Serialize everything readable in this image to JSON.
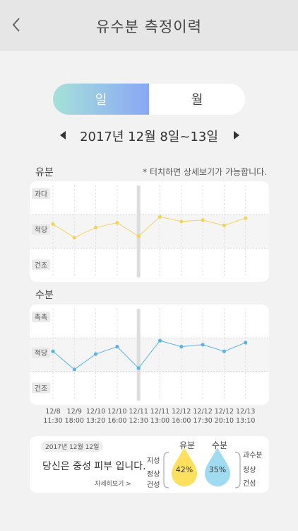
{
  "header": {
    "title": "유수분 측정이력",
    "back_icon": "chevron-left-icon"
  },
  "toggle": {
    "day": "일",
    "month": "월"
  },
  "date_nav": {
    "range": "2017년 12월 8일~13일"
  },
  "oil_section": {
    "label": "유분",
    "hint": "* 터치하면 상세보기가 가능합니다.",
    "levels": [
      "과다",
      "적당",
      "건조"
    ]
  },
  "moisture_section": {
    "label": "수분",
    "levels": [
      "촉촉",
      "적당",
      "건조"
    ]
  },
  "times": [
    {
      "date": "12/8",
      "time": "11:30"
    },
    {
      "date": "12/9",
      "time": "18:00"
    },
    {
      "date": "12/10",
      "time": "13:20"
    },
    {
      "date": "12/10",
      "time": "16:00"
    },
    {
      "date": "12/11",
      "time": "12:30"
    },
    {
      "date": "12/11",
      "time": "13:00"
    },
    {
      "date": "12/12",
      "time": "16:00"
    },
    {
      "date": "12/12",
      "time": "17:30"
    },
    {
      "date": "12/12",
      "time": "20:10"
    },
    {
      "date": "12/13",
      "time": "13:10"
    }
  ],
  "chart_data": [
    {
      "type": "line",
      "title": "유분",
      "categories": [
        "12/8 11:30",
        "12/9 18:00",
        "12/10 13:20",
        "12/10 16:00",
        "12/11 12:30",
        "12/11 13:00",
        "12/12 16:00",
        "12/12 17:30",
        "12/12 20:10",
        "12/13 13:10"
      ],
      "series": [
        {
          "values": [
            1.72,
            1.32,
            1.62,
            1.76,
            1.36,
            1.94,
            1.8,
            1.84,
            1.68,
            1.9
          ]
        }
      ],
      "ylim": [
        0,
        3
      ],
      "y_bands": [
        "건조",
        "적당",
        "과다"
      ],
      "color": "#f3d35a",
      "highlight_index": 4
    },
    {
      "type": "line",
      "title": "수분",
      "categories": [
        "12/8 11:30",
        "12/9 18:00",
        "12/10 13:20",
        "12/10 16:00",
        "12/11 12:30",
        "12/11 13:00",
        "12/12 16:00",
        "12/12 17:30",
        "12/12 20:10",
        "12/13 13:10"
      ],
      "series": [
        {
          "values": [
            1.6,
            1.06,
            1.52,
            1.74,
            1.1,
            1.92,
            1.74,
            1.8,
            1.6,
            1.86
          ]
        }
      ],
      "ylim": [
        0,
        3
      ],
      "y_bands": [
        "건조",
        "적당",
        "촉촉"
      ],
      "color": "#59b4e3",
      "highlight_index": 4
    }
  ],
  "summary": {
    "date": "2017년 12월 12일",
    "text": "당신은 중성 피부 입니다.",
    "link": "자세히보기 >",
    "oil_levels": [
      "지성",
      "정상",
      "건성"
    ],
    "moisture_levels": [
      "과수분",
      "정상",
      "건성"
    ],
    "oil": {
      "label": "유분",
      "value": "42%",
      "color": "#fde05e"
    },
    "moisture": {
      "label": "수분",
      "value": "35%",
      "color": "#9fdcf2"
    }
  }
}
